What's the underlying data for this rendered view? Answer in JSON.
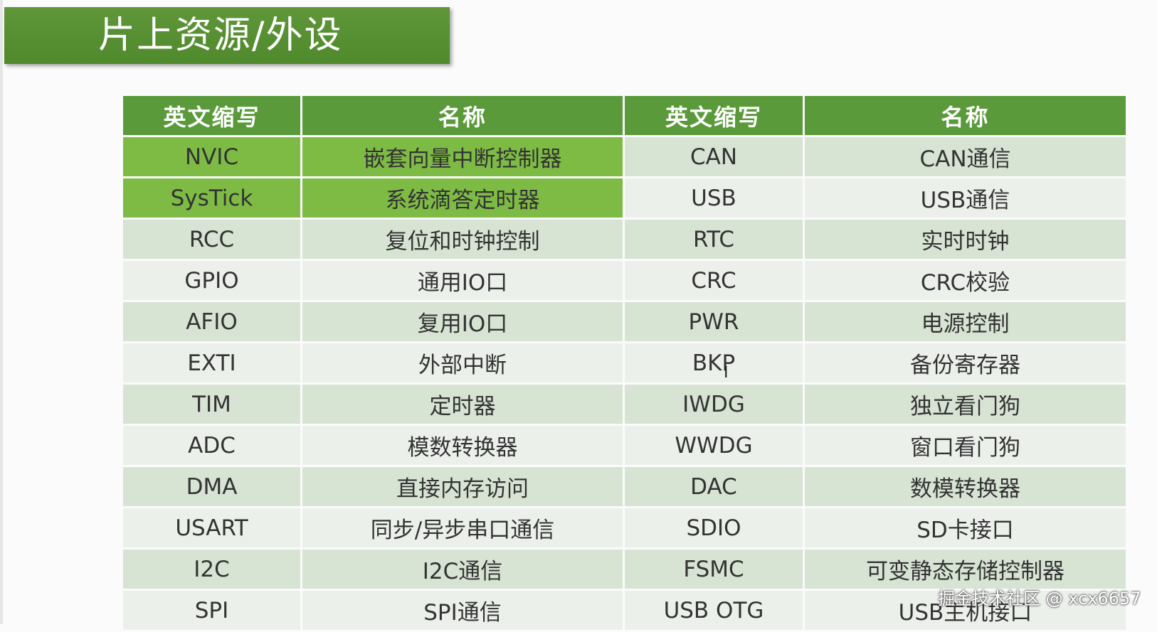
{
  "slide": {
    "title": "片上资源/外设"
  },
  "table": {
    "headers": [
      "英文缩写",
      "名称",
      "英文缩写",
      "名称"
    ],
    "rows": [
      [
        "NVIC",
        "嵌套向量中断控制器",
        "CAN",
        "CAN通信"
      ],
      [
        "SysTick",
        "系统滴答定时器",
        "USB",
        "USB通信"
      ],
      [
        "RCC",
        "复位和时钟控制",
        "RTC",
        "实时时钟"
      ],
      [
        "GPIO",
        "通用IO口",
        "CRC",
        "CRC校验"
      ],
      [
        "AFIO",
        "复用IO口",
        "PWR",
        "电源控制"
      ],
      [
        "EXTI",
        "外部中断",
        "BKP",
        "备份寄存器"
      ],
      [
        "TIM",
        "定时器",
        "IWDG",
        "独立看门狗"
      ],
      [
        "ADC",
        "模数转换器",
        "WWDG",
        "窗口看门狗"
      ],
      [
        "DMA",
        "直接内存访问",
        "DAC",
        "数模转换器"
      ],
      [
        "USART",
        "同步/异步串口通信",
        "SDIO",
        "SD卡接口"
      ],
      [
        "I2C",
        "I2C通信",
        "FSMC",
        "可变静态存储控制器"
      ],
      [
        "SPI",
        "SPI通信",
        "USB OTG",
        "USB主机接口"
      ]
    ],
    "highlighted_rows": [
      0,
      1
    ]
  },
  "watermark": "掘金技术社区 @ xcx6657",
  "colors": {
    "title_bg": "#5a9a3a",
    "header_bg": "#5a9a3a",
    "highlight_bg": "#7dbb45",
    "row_odd_bg": "#d7e3d3",
    "row_even_bg": "#ecf0eb"
  }
}
